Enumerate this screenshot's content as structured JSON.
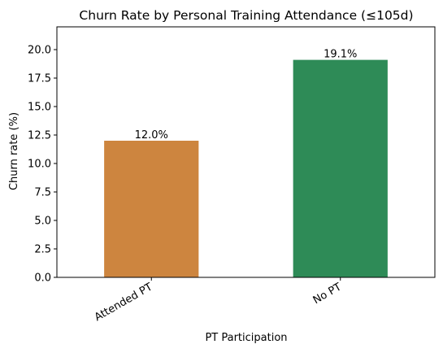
{
  "chart_data": {
    "type": "bar",
    "title": "Churn Rate by Personal Training Attendance (≤105d)",
    "xlabel": "PT Participation",
    "ylabel": "Churn rate (%)",
    "categories": [
      "Attended PT",
      "No PT"
    ],
    "values": [
      12.0,
      19.1
    ],
    "data_labels": [
      "12.0%",
      "19.1%"
    ],
    "colors": [
      "#cd853f",
      "#2e8b57"
    ],
    "ylim": [
      0,
      22
    ],
    "yticks": [
      0.0,
      2.5,
      5.0,
      7.5,
      10.0,
      12.5,
      15.0,
      17.5,
      20.0
    ],
    "ytick_labels": [
      "0.0",
      "2.5",
      "5.0",
      "7.5",
      "10.0",
      "12.5",
      "15.0",
      "17.5",
      "20.0"
    ],
    "grid": false,
    "legend": "none"
  }
}
